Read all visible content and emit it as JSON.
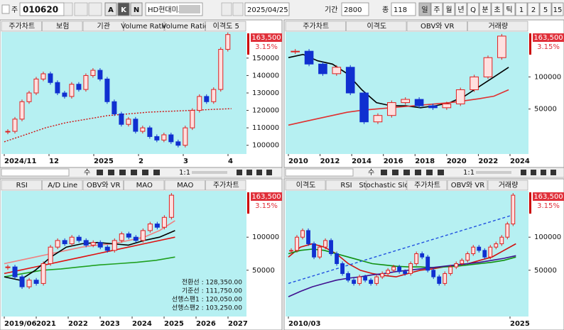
{
  "toolbar": {
    "type_label": "주",
    "code": "010620",
    "buttons": [
      "A",
      "K",
      "N"
    ],
    "name": "HD현대미포",
    "date": "2025/04/25",
    "period_label": "기간",
    "period": "2800",
    "count_label": "종",
    "count": "118",
    "intervals": [
      "일",
      "주",
      "월",
      "년",
      "Q",
      "분",
      "초",
      "틱",
      "1",
      "2",
      "5",
      "15"
    ]
  },
  "scrollbars": [
    {
      "labels": [
        "수",
        "1:1"
      ]
    },
    {
      "labels": [
        "수",
        "1:1"
      ]
    }
  ],
  "panels": [
    {
      "tabs": [
        "주가차트",
        "보험",
        "기관",
        "Volume Ratio",
        "Volume Ratio",
        "이격도 5"
      ],
      "price": "163,500",
      "change": "3.15%",
      "ylim": [
        95000,
        165000
      ],
      "yticks": [
        100000,
        110000,
        120000,
        130000,
        140000,
        150000
      ],
      "x_labels": [
        "2024/11",
        "12",
        "2025",
        "2",
        "3",
        "4"
      ],
      "close": [
        108000,
        115000,
        125000,
        130000,
        138000,
        141000,
        136000,
        130000,
        128000,
        135000,
        132000,
        140000,
        143000,
        138000,
        125000,
        118000,
        112000,
        115000,
        108000,
        110000,
        105000,
        103000,
        106000,
        102000,
        100000,
        110000,
        120000,
        128000,
        125000,
        132000,
        155000,
        163500
      ],
      "lines": [
        {
          "color": "#d01010",
          "style": "dotted",
          "values": [
            102000,
            106000,
            110000,
            113000,
            115000,
            117000,
            118000,
            119000,
            119500,
            120000,
            120500,
            121000
          ]
        }
      ]
    },
    {
      "tabs": [
        "주가차트",
        "이격도",
        "OBV와 VR",
        "거래량"
      ],
      "price": "163,500",
      "change": "3.15%",
      "ylim": [
        -20000,
        170000
      ],
      "yticks": [
        50000,
        100000
      ],
      "x_labels": [
        "2010",
        "2012",
        "2014",
        "2016",
        "2018",
        "2020",
        "2022",
        "2024"
      ],
      "close": [
        140000,
        120000,
        105000,
        115000,
        75000,
        30000,
        40000,
        60000,
        65000,
        55000,
        52000,
        58000,
        80000,
        100000,
        130000,
        163500
      ],
      "lines": [
        {
          "color": "#000000",
          "style": "solid",
          "values": [
            130000,
            135000,
            125000,
            120000,
            105000,
            80000,
            60000,
            55000,
            55000,
            52000,
            55000,
            60000,
            70000,
            85000,
            100000,
            115000
          ]
        },
        {
          "color": "#e03030",
          "style": "solid",
          "values": [
            25000,
            30000,
            35000,
            40000,
            45000,
            48000,
            50000,
            52000,
            54000,
            56000,
            58000,
            60000,
            63000,
            66000,
            70000,
            80000
          ]
        }
      ]
    },
    {
      "tabs": [
        "RSI",
        "A/D Line",
        "OBV와 VR",
        "MAO",
        "MAO",
        "주가차트"
      ],
      "price": "163,500",
      "change": "3.15%",
      "ylim": [
        -20000,
        170000
      ],
      "yticks": [
        50000,
        100000
      ],
      "x_labels": [
        "2019/06",
        "2021",
        "2022",
        "2023",
        "2024",
        "2025",
        "2026",
        "2027"
      ],
      "close": [
        55000,
        40000,
        25000,
        35000,
        30000,
        60000,
        85000,
        95000,
        90000,
        100000,
        95000,
        88000,
        92000,
        85000,
        80000,
        95000,
        105000,
        100000,
        95000,
        110000,
        120000,
        115000,
        130000,
        163500
      ],
      "lines": [
        {
          "color": "#f08080",
          "style": "solid",
          "values": [
            60000,
            65000,
            70000,
            75000,
            80000,
            85000,
            88000,
            90000,
            95000,
            100000,
            110000,
            125000
          ]
        },
        {
          "color": "#20a020",
          "style": "solid",
          "values": [
            40000,
            45000,
            50000,
            52000,
            55000,
            58000,
            60000,
            62000,
            65000,
            70000
          ]
        },
        {
          "color": "#e01010",
          "style": "solid",
          "values": [
            45000,
            50000,
            55000,
            60000,
            65000,
            70000,
            75000,
            80000,
            85000,
            90000,
            95000,
            100000
          ]
        },
        {
          "color": "#000000",
          "style": "solid",
          "values": [
            40000,
            35000,
            50000,
            70000,
            85000,
            90000,
            92000,
            90000,
            88000,
            95000,
            100000,
            110000
          ]
        }
      ],
      "notes": [
        "전환선 : 128,350.00",
        "기준선 : 111,750.00",
        "선행스팬1 : 120,050.00",
        "선행스팬2 : 103,250.00"
      ]
    },
    {
      "tabs": [
        "이격도",
        "RSI",
        "Stochastic Slow",
        "주가차트",
        "OBV와 VR",
        "거래량"
      ],
      "price": "163,500",
      "change": "3.15%",
      "ylim": [
        -20000,
        170000
      ],
      "yticks": [
        50000,
        100000
      ],
      "x_labels": [
        "2010/03",
        "2025"
      ],
      "close": [
        80000,
        100000,
        110000,
        90000,
        70000,
        85000,
        95000,
        75000,
        60000,
        45000,
        35000,
        30000,
        40000,
        35000,
        30000,
        40000,
        45000,
        50000,
        55000,
        48000,
        45000,
        60000,
        75000,
        70000,
        50000,
        40000,
        30000,
        45000,
        55000,
        60000,
        65000,
        75000,
        85000,
        80000,
        70000,
        85000,
        90000,
        100000,
        120000,
        163500
      ],
      "lines": [
        {
          "color": "#d01010",
          "style": "solid",
          "values": [
            70000,
            85000,
            90000,
            85000,
            75000,
            60000,
            50000,
            45000,
            42000,
            40000,
            45000,
            50000,
            52000,
            55000,
            58000,
            60000,
            65000,
            70000,
            80000,
            90000
          ]
        },
        {
          "color": "#109010",
          "style": "solid",
          "values": [
            75000,
            80000,
            82000,
            80000,
            75000,
            70000,
            65000,
            60000,
            58000,
            56000,
            55000,
            55000,
            54000,
            55000,
            56000,
            58000,
            60000,
            62000,
            65000,
            70000
          ]
        },
        {
          "color": "#401090",
          "style": "solid",
          "values": [
            10000,
            18000,
            25000,
            30000,
            35000,
            38000,
            40000,
            43000,
            45000,
            48000,
            50000,
            52000,
            54000,
            56000,
            58000,
            60000,
            62000,
            65000,
            68000,
            72000
          ]
        },
        {
          "color": "#2050e0",
          "style": "dashed",
          "values": [
            30000,
            135000
          ]
        }
      ]
    }
  ]
}
